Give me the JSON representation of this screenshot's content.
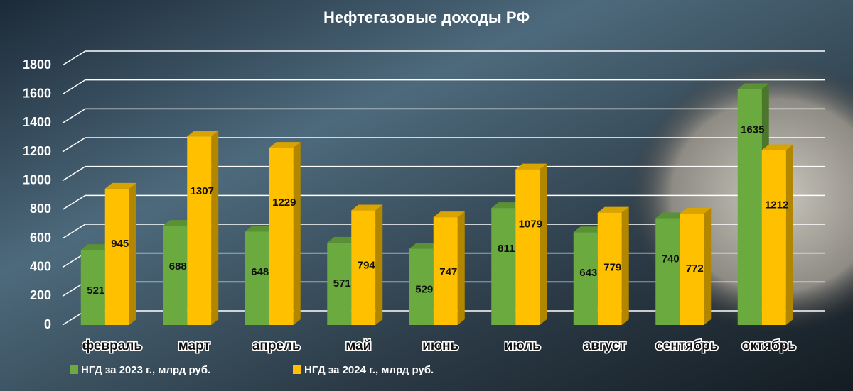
{
  "chart_data": {
    "type": "bar3d",
    "title": "Нефтегазовые доходы РФ",
    "categories": [
      "февраль",
      "март",
      "апрель",
      "май",
      "июнь",
      "июль",
      "август",
      "сентябрь",
      "октябрь"
    ],
    "series": [
      {
        "name": "НГД за 2023 г., млрд руб.",
        "color": "#6aaa3e",
        "values": [
          521,
          688,
          648,
          571,
          529,
          811,
          643,
          740,
          1635
        ]
      },
      {
        "name": "НГД за 2024 г., млрд руб.",
        "color": "#ffc000",
        "values": [
          945,
          1307,
          1229,
          794,
          747,
          1079,
          779,
          772,
          1212
        ]
      }
    ],
    "ylim": [
      0,
      1800
    ],
    "yticks": [
      0,
      200,
      400,
      600,
      800,
      1000,
      1200,
      1400,
      1600,
      1800
    ],
    "grid": true
  }
}
